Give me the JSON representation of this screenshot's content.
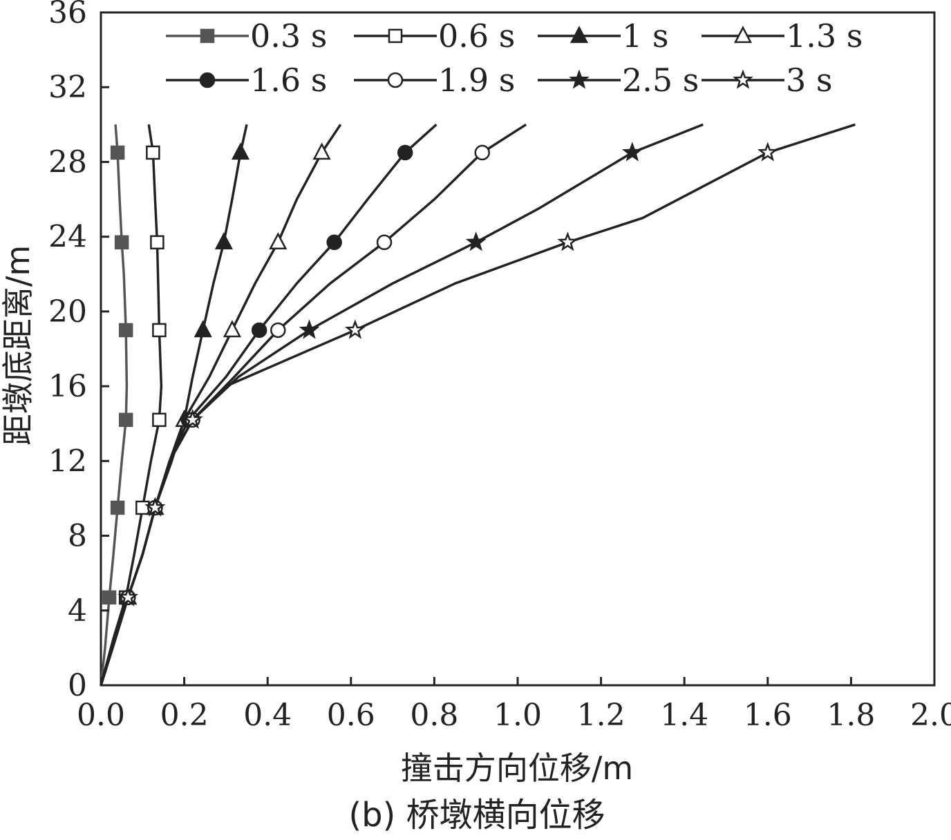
{
  "chart_data": {
    "type": "line",
    "title": "",
    "caption": "(b) 桥墩横向位移",
    "xlabel": "撞击方向位移/m",
    "ylabel": "距墩底距离/m",
    "xlim": [
      0.0,
      2.0
    ],
    "ylim": [
      0,
      36
    ],
    "x_ticks": [
      0.0,
      0.2,
      0.4,
      0.6,
      0.8,
      1.0,
      1.2,
      1.4,
      1.6,
      1.8,
      2.0
    ],
    "x_tick_labels": [
      "0.0",
      "0.2",
      "0.4",
      "0.6",
      "0.8",
      "1.0",
      "1.2",
      "1.4",
      "1.6",
      "1.8",
      "2.0"
    ],
    "y_ticks": [
      0,
      4,
      8,
      12,
      16,
      20,
      24,
      28,
      32,
      36
    ],
    "y_tick_labels": [
      "0",
      "4",
      "8",
      "12",
      "16",
      "20",
      "24",
      "28",
      "32",
      "36"
    ],
    "grid": false,
    "legend_position": "top",
    "series": [
      {
        "name": "0.3 s",
        "color": "#555555",
        "marker": "square-filled",
        "line": [
          [
            0,
            0
          ],
          [
            0.01,
            2
          ],
          [
            0.02,
            4.7
          ],
          [
            0.03,
            7
          ],
          [
            0.04,
            9.5
          ],
          [
            0.05,
            12
          ],
          [
            0.06,
            14.2
          ],
          [
            0.062,
            16
          ],
          [
            0.06,
            19
          ],
          [
            0.055,
            22
          ],
          [
            0.05,
            23.7
          ],
          [
            0.045,
            26
          ],
          [
            0.04,
            28.5
          ],
          [
            0.035,
            30
          ]
        ],
        "markers": [
          [
            0.02,
            4.7
          ],
          [
            0.04,
            9.5
          ],
          [
            0.06,
            14.2
          ],
          [
            0.06,
            19
          ],
          [
            0.05,
            23.7
          ],
          [
            0.04,
            28.5
          ]
        ]
      },
      {
        "name": "0.6 s",
        "color": "#222222",
        "marker": "square-open",
        "line": [
          [
            0,
            0
          ],
          [
            0.03,
            2.5
          ],
          [
            0.06,
            4.7
          ],
          [
            0.08,
            7
          ],
          [
            0.1,
            9.5
          ],
          [
            0.12,
            12
          ],
          [
            0.14,
            14.2
          ],
          [
            0.145,
            16
          ],
          [
            0.14,
            19
          ],
          [
            0.138,
            21
          ],
          [
            0.135,
            23.7
          ],
          [
            0.13,
            26
          ],
          [
            0.125,
            28.5
          ],
          [
            0.115,
            30
          ]
        ],
        "markers": [
          [
            0.06,
            4.7
          ],
          [
            0.1,
            9.5
          ],
          [
            0.14,
            14.2
          ],
          [
            0.14,
            19
          ],
          [
            0.135,
            23.7
          ],
          [
            0.125,
            28.5
          ]
        ]
      },
      {
        "name": "1 s",
        "color": "#222222",
        "marker": "triangle-filled",
        "line": [
          [
            0,
            0
          ],
          [
            0.035,
            2.5
          ],
          [
            0.065,
            4.7
          ],
          [
            0.1,
            7
          ],
          [
            0.13,
            9.5
          ],
          [
            0.17,
            12
          ],
          [
            0.2,
            14.2
          ],
          [
            0.22,
            16.5
          ],
          [
            0.245,
            19
          ],
          [
            0.27,
            21.5
          ],
          [
            0.295,
            23.7
          ],
          [
            0.315,
            26
          ],
          [
            0.335,
            28.5
          ],
          [
            0.35,
            30
          ]
        ],
        "markers": [
          [
            0.065,
            4.7
          ],
          [
            0.13,
            9.5
          ],
          [
            0.2,
            14.2
          ],
          [
            0.245,
            19
          ],
          [
            0.295,
            23.7
          ],
          [
            0.335,
            28.5
          ]
        ]
      },
      {
        "name": "1.3 s",
        "color": "#222222",
        "marker": "triangle-open",
        "line": [
          [
            0,
            0
          ],
          [
            0.035,
            2.5
          ],
          [
            0.065,
            4.7
          ],
          [
            0.1,
            7
          ],
          [
            0.13,
            9.5
          ],
          [
            0.165,
            12
          ],
          [
            0.2,
            14.2
          ],
          [
            0.26,
            16.5
          ],
          [
            0.315,
            19
          ],
          [
            0.37,
            21.5
          ],
          [
            0.425,
            23.7
          ],
          [
            0.47,
            26
          ],
          [
            0.53,
            28.5
          ],
          [
            0.575,
            30
          ]
        ],
        "markers": [
          [
            0.065,
            4.7
          ],
          [
            0.13,
            9.5
          ],
          [
            0.2,
            14.2
          ],
          [
            0.315,
            19
          ],
          [
            0.425,
            23.7
          ],
          [
            0.53,
            28.5
          ]
        ]
      },
      {
        "name": "1.6 s",
        "color": "#222222",
        "marker": "circle-filled",
        "line": [
          [
            0,
            0
          ],
          [
            0.035,
            2.5
          ],
          [
            0.065,
            4.7
          ],
          [
            0.1,
            7
          ],
          [
            0.13,
            9.5
          ],
          [
            0.165,
            12
          ],
          [
            0.21,
            14.2
          ],
          [
            0.3,
            16.5
          ],
          [
            0.38,
            19
          ],
          [
            0.47,
            21.5
          ],
          [
            0.56,
            23.7
          ],
          [
            0.64,
            26
          ],
          [
            0.73,
            28.5
          ],
          [
            0.805,
            30
          ]
        ],
        "markers": [
          [
            0.065,
            4.7
          ],
          [
            0.13,
            9.5
          ],
          [
            0.21,
            14.2
          ],
          [
            0.38,
            19
          ],
          [
            0.56,
            23.7
          ],
          [
            0.73,
            28.5
          ]
        ]
      },
      {
        "name": "1.9 s",
        "color": "#222222",
        "marker": "circle-open",
        "line": [
          [
            0,
            0
          ],
          [
            0.035,
            2.5
          ],
          [
            0.065,
            4.7
          ],
          [
            0.1,
            7
          ],
          [
            0.13,
            9.5
          ],
          [
            0.165,
            12
          ],
          [
            0.22,
            14.2
          ],
          [
            0.32,
            16.5
          ],
          [
            0.425,
            19
          ],
          [
            0.55,
            21.5
          ],
          [
            0.68,
            23.7
          ],
          [
            0.8,
            26
          ],
          [
            0.915,
            28.5
          ],
          [
            1.02,
            30
          ]
        ],
        "markers": [
          [
            0.065,
            4.7
          ],
          [
            0.13,
            9.5
          ],
          [
            0.22,
            14.2
          ],
          [
            0.425,
            19
          ],
          [
            0.68,
            23.7
          ],
          [
            0.915,
            28.5
          ]
        ]
      },
      {
        "name": "2.5 s",
        "color": "#222222",
        "marker": "star-filled",
        "line": [
          [
            0,
            0
          ],
          [
            0.035,
            2.5
          ],
          [
            0.065,
            4.7
          ],
          [
            0.1,
            7
          ],
          [
            0.13,
            9.5
          ],
          [
            0.165,
            12
          ],
          [
            0.22,
            14.2
          ],
          [
            0.33,
            16.5
          ],
          [
            0.5,
            19
          ],
          [
            0.7,
            21.5
          ],
          [
            0.9,
            23.7
          ],
          [
            1.05,
            25.5
          ],
          [
            1.275,
            28.5
          ],
          [
            1.445,
            30
          ]
        ],
        "markers": [
          [
            0.065,
            4.7
          ],
          [
            0.13,
            9.5
          ],
          [
            0.22,
            14.2
          ],
          [
            0.5,
            19
          ],
          [
            0.9,
            23.7
          ],
          [
            1.275,
            28.5
          ]
        ]
      },
      {
        "name": "3 s",
        "color": "#222222",
        "marker": "star-open",
        "line": [
          [
            0,
            0
          ],
          [
            0.035,
            2.5
          ],
          [
            0.065,
            4.7
          ],
          [
            0.1,
            7
          ],
          [
            0.13,
            9.5
          ],
          [
            0.165,
            12
          ],
          [
            0.22,
            14.2
          ],
          [
            0.3,
            16
          ],
          [
            0.61,
            19
          ],
          [
            0.85,
            21.5
          ],
          [
            1.12,
            23.7
          ],
          [
            1.3,
            25
          ],
          [
            1.6,
            28.5
          ],
          [
            1.81,
            30
          ]
        ],
        "markers": [
          [
            0.065,
            4.7
          ],
          [
            0.13,
            9.5
          ],
          [
            0.22,
            14.2
          ],
          [
            0.61,
            19
          ],
          [
            1.12,
            23.7
          ],
          [
            1.6,
            28.5
          ]
        ]
      }
    ]
  }
}
